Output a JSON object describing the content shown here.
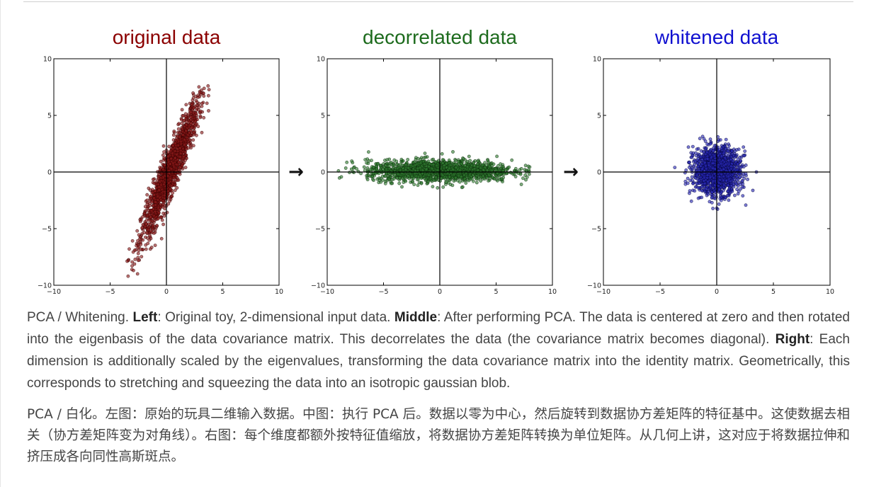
{
  "figure": {
    "arrow_glyph": "→",
    "panels": [
      {
        "title": "original data",
        "title_color": "#8b0000",
        "point_fill": "#8b1a1a",
        "point_stroke": "#3a0000"
      },
      {
        "title": "decorrelated data",
        "title_color": "#1d6b1d",
        "point_fill": "#2f7a2f",
        "point_stroke": "#0d300d"
      },
      {
        "title": "whitened data",
        "title_color": "#1010d0",
        "point_fill": "#2a2ab8",
        "point_stroke": "#060640"
      }
    ]
  },
  "chart_data": [
    {
      "type": "scatter",
      "title": "original data",
      "xlim": [
        -10,
        10
      ],
      "ylim": [
        -10,
        10
      ],
      "xticks": [
        -10,
        -5,
        0,
        5,
        10
      ],
      "yticks": [
        -10,
        -5,
        0,
        5,
        10
      ],
      "xticklabels": [
        "−10",
        "−5",
        "0",
        "5",
        "10"
      ],
      "yticklabels": [
        "−10",
        "−5",
        "0",
        "5",
        "10"
      ],
      "grid": false,
      "distribution": {
        "mean": [
          0.3,
          0.0
        ],
        "covariance": [
          [
            1.6,
            3.5
          ],
          [
            3.5,
            8.8
          ]
        ],
        "n": 1500,
        "clip": [
          [
            -3.5,
            3.8
          ],
          [
            -9.3,
            7.7
          ]
        ]
      },
      "series": [
        {
          "values": [
            [
              -3.4,
              -9.2
            ],
            [
              3.7,
              7.6
            ],
            [
              -2.5,
              -7.8
            ],
            [
              2.8,
              6.6
            ],
            [
              0.0,
              -0.7
            ],
            [
              1.2,
              2.1
            ],
            [
              -1.0,
              -3.5
            ],
            [
              2.2,
              4.3
            ]
          ]
        }
      ]
    },
    {
      "type": "scatter",
      "title": "decorrelated data",
      "xlim": [
        -10,
        10
      ],
      "ylim": [
        -10,
        10
      ],
      "xticks": [
        -10,
        -5,
        0,
        5,
        10
      ],
      "yticks": [
        -10,
        -5,
        0,
        5,
        10
      ],
      "xticklabels": [
        "−10",
        "−5",
        "0",
        "5",
        "10"
      ],
      "yticklabels": [
        "−10",
        "−5",
        "0",
        "5",
        "10"
      ],
      "grid": false,
      "distribution": {
        "mean": [
          0.0,
          0.1
        ],
        "covariance": [
          [
            10.2,
            0.0
          ],
          [
            0.0,
            0.22
          ]
        ],
        "n": 1500,
        "clip": [
          [
            -9.1,
            8.0
          ],
          [
            -1.5,
            1.9
          ]
        ]
      },
      "series": [
        {
          "values": [
            [
              -9.0,
              0.1
            ],
            [
              7.9,
              0.2
            ],
            [
              -6.5,
              0.8
            ],
            [
              5.5,
              -0.6
            ],
            [
              0.2,
              1.6
            ],
            [
              -0.2,
              -1.4
            ]
          ]
        }
      ]
    },
    {
      "type": "scatter",
      "title": "whitened data",
      "xlim": [
        -10,
        10
      ],
      "ylim": [
        -10,
        10
      ],
      "xticks": [
        -10,
        -5,
        0,
        5,
        10
      ],
      "yticks": [
        -10,
        -5,
        0,
        5,
        10
      ],
      "xticklabels": [
        "−10",
        "−5",
        "0",
        "5",
        "10"
      ],
      "yticklabels": [
        "−10",
        "−5",
        "0",
        "5",
        "10"
      ],
      "grid": false,
      "distribution": {
        "mean": [
          0.0,
          0.1
        ],
        "covariance": [
          [
            1.0,
            0.0
          ],
          [
            0.0,
            1.0
          ]
        ],
        "n": 1500,
        "clip": [
          [
            -3.8,
            3.6
          ],
          [
            -3.3,
            3.2
          ]
        ]
      },
      "series": [
        {
          "values": [
            [
              -3.7,
              0.4
            ],
            [
              3.5,
              0.0
            ],
            [
              0.1,
              3.1
            ],
            [
              0.0,
              -3.2
            ],
            [
              -2.5,
              2.2
            ],
            [
              2.3,
              -2.1
            ]
          ]
        }
      ]
    }
  ],
  "caption_en": {
    "p1": "PCA / Whitening. ",
    "b1": "Left",
    "p2": ": Original toy, 2-dimensional input data. ",
    "b2": "Middle",
    "p3": ": After performing PCA. The data is centered at zero and then rotated into the eigenbasis of the data covariance matrix. This decorrelates the data (the covariance matrix becomes diagonal). ",
    "b3": "Right",
    "p4": ": Each dimension is additionally scaled by the eigenvalues, transforming the data covariance matrix into the identity matrix. Geometrically, this corresponds to stretching and squeezing the data into an isotropic gaussian blob."
  },
  "caption_zh": "PCA / 白化。左图：原始的玩具二维输入数据。中图：执行 PCA 后。数据以零为中心，然后旋转到数据协方差矩阵的特征基中。这使数据去相关（协方差矩阵变为对角线）。右图：每个维度都额外按特征值缩放，将数据协方差矩阵转换为单位矩阵。从几何上讲，这对应于将数据拉伸和挤压成各向同性高斯斑点。"
}
